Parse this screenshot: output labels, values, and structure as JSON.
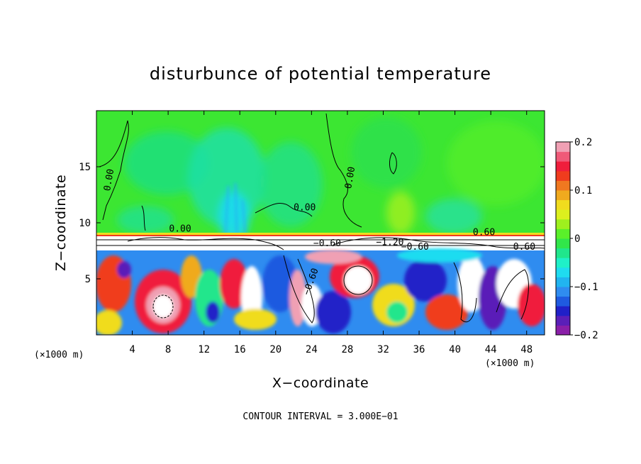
{
  "chart_data": {
    "type": "heatmap",
    "title": "disturbunce of potential temperature",
    "xlabel": "X−coordinate",
    "ylabel": "Z−coordinate",
    "x_unit": "(×1000 m)",
    "x_unit_right": "(×1000 m)",
    "xlim": [
      0,
      50
    ],
    "ylim": [
      0,
      20
    ],
    "x_ticks": [
      4,
      8,
      12,
      16,
      20,
      24,
      28,
      32,
      36,
      40,
      44,
      48
    ],
    "y_ticks": [
      5,
      10,
      15
    ],
    "colorbar": {
      "range": [
        -0.2,
        0.2
      ],
      "ticks": [
        {
          "value": 0.2,
          "label": "0.2"
        },
        {
          "value": 0.1,
          "label": "0.1"
        },
        {
          "value": 0,
          "label": "0"
        },
        {
          "value": -0.1,
          "label": "−0.1"
        },
        {
          "value": -0.2,
          "label": "−0.2"
        }
      ],
      "colors": [
        "#8a1fa8",
        "#5a1fb8",
        "#2020c8",
        "#1f5ae0",
        "#2f8cf0",
        "#21b4f0",
        "#1fdcf0",
        "#1ff0c8",
        "#20e68c",
        "#31e64a",
        "#5af02a",
        "#9ef01e",
        "#dcf01e",
        "#f0dc1e",
        "#f0aa1e",
        "#f07820",
        "#f03c1e",
        "#f01e3c",
        "#f05a78",
        "#f0a0b4"
      ]
    },
    "contour_labels": [
      {
        "text": "0.00",
        "x": 1.5,
        "y": 12.8,
        "rot": -80
      },
      {
        "text": "0.00",
        "x": 8.1,
        "y": 9.2,
        "rot": 0
      },
      {
        "text": "0.00",
        "x": 22.0,
        "y": 11.1,
        "rot": 0
      },
      {
        "text": "0.00",
        "x": 28.4,
        "y": 13.0,
        "rot": -80
      },
      {
        "text": "−0.60",
        "x": 24.2,
        "y": 7.9,
        "rot": 0
      },
      {
        "text": "−1.20",
        "x": 31.2,
        "y": 8.0,
        "rot": 0
      },
      {
        "text": "−0.60",
        "x": 34.0,
        "y": 7.6,
        "rot": 0
      },
      {
        "text": "0.60",
        "x": 42.0,
        "y": 8.9,
        "rot": 0
      },
      {
        "text": "0.60",
        "x": 46.5,
        "y": 7.6,
        "rot": 0
      },
      {
        "text": "−0.60",
        "x": 23.7,
        "y": 3.5,
        "rot": -70
      }
    ],
    "footer": "CONTOUR INTERVAL = 3.000E−01"
  }
}
